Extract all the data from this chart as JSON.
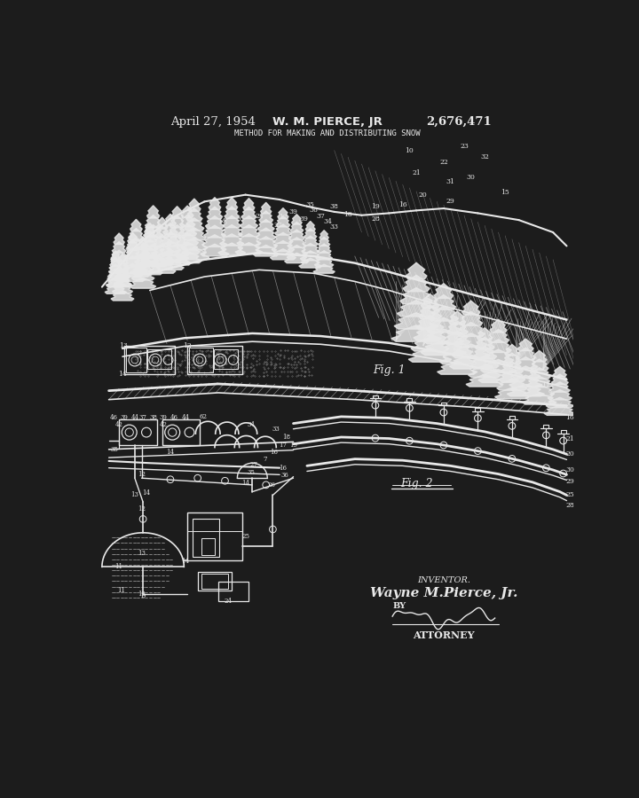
{
  "background_color": "#1c1c1c",
  "line_color": "#e8e8e8",
  "text_color": "#e8e8e8",
  "fig_width": 7.2,
  "fig_height": 9.0,
  "dpi": 100,
  "header": {
    "date": "April 27, 1954",
    "inventor": "W. M. PIERCE, JR",
    "patent_num": "2,676,471",
    "title": "METHOD FOR MAKING AND DISTRIBUTING SNOW"
  },
  "footer": {
    "inventor_label": "INVENTOR.",
    "inventor_name": "Wayne M.Pierce, Jr.",
    "by": "BY",
    "attorney": "ATTORNEY",
    "fig2_label": "Fig. 2"
  }
}
